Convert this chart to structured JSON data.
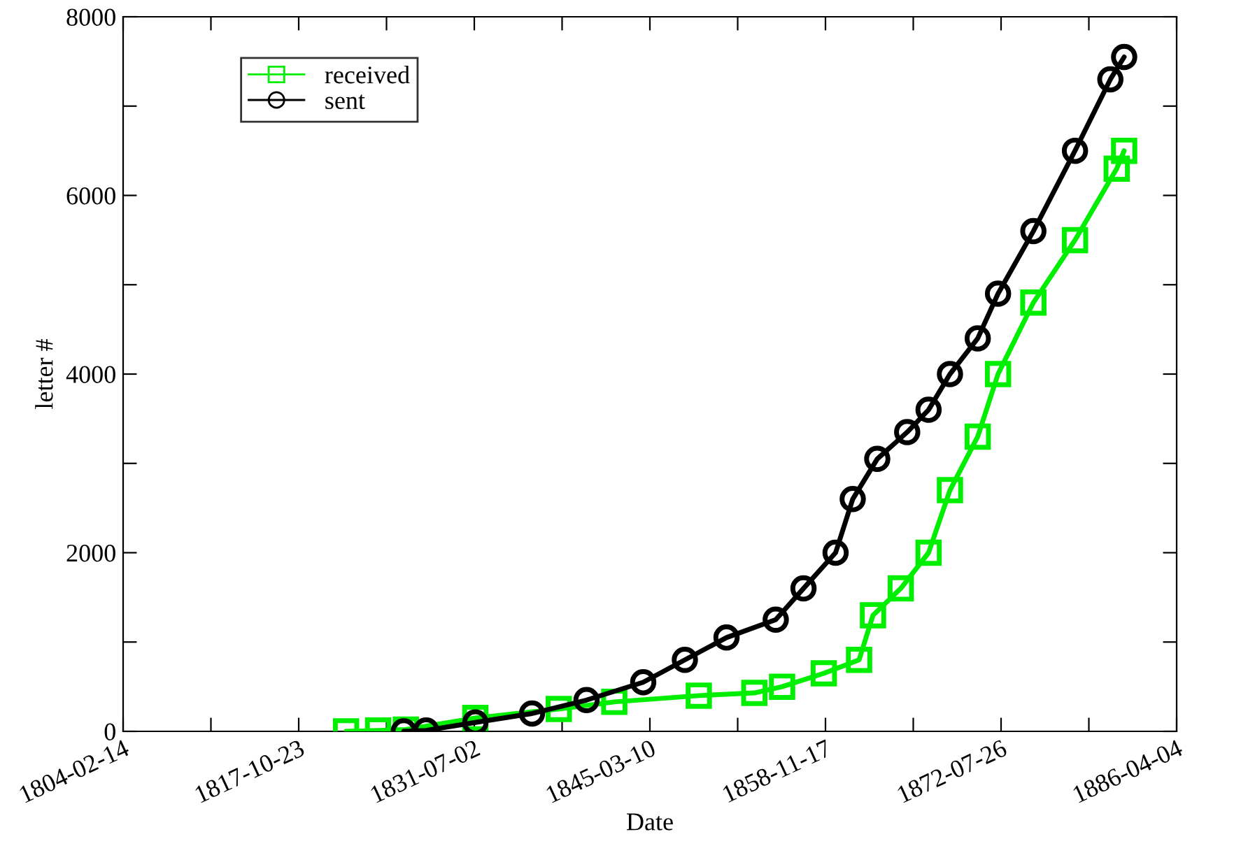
{
  "chart_data": {
    "type": "line",
    "xlabel": "Date",
    "ylabel": "letter #",
    "xlim": [
      "1804-02-14",
      "1886-04-04"
    ],
    "xticks": [
      {
        "value": "1804-02-14",
        "label": "1804-02-14"
      },
      {
        "value": "1810-12-19",
        "label": null
      },
      {
        "value": "1817-10-23",
        "label": "1817-10-23"
      },
      {
        "value": "1824-08-27",
        "label": null
      },
      {
        "value": "1831-07-02",
        "label": "1831-07-02"
      },
      {
        "value": "1838-05-06",
        "label": null
      },
      {
        "value": "1845-03-10",
        "label": "1845-03-10"
      },
      {
        "value": "1852-01-13",
        "label": null
      },
      {
        "value": "1858-11-17",
        "label": "1858-11-17"
      },
      {
        "value": "1865-09-21",
        "label": null
      },
      {
        "value": "1872-07-26",
        "label": "1872-07-26"
      },
      {
        "value": "1879-05-31",
        "label": null
      },
      {
        "value": "1886-04-04",
        "label": "1886-04-04"
      }
    ],
    "ylim": [
      0,
      8000
    ],
    "yticks": [
      0,
      {
        "value": 1000,
        "label": null
      },
      2000,
      {
        "value": 3000,
        "label": null
      },
      4000,
      {
        "value": 5000,
        "label": null
      },
      6000,
      {
        "value": 7000,
        "label": null
      },
      8000
    ],
    "grid": false,
    "legend": "top left",
    "line_style": "solid",
    "series": [
      {
        "name": "received",
        "color": "#00ee00",
        "marker": "square",
        "x": [
          "1821-07",
          "1824-01",
          "1826-03",
          "1831-08",
          "1838-02",
          "1842-06",
          "1849-01",
          "1853-05",
          "1855-07",
          "1858-10",
          "1861-07",
          "1862-08",
          "1864-10",
          "1866-12",
          "1868-08",
          "1870-10",
          "1872-05",
          "1875-02",
          "1878-05",
          "1881-08",
          "1882-03"
        ],
        "values": [
          0,
          10,
          20,
          150,
          250,
          330,
          400,
          430,
          500,
          650,
          800,
          1300,
          1600,
          2000,
          2700,
          3300,
          4000,
          4800,
          5500,
          6300,
          6500
        ]
      },
      {
        "name": "sent",
        "color": "#000000",
        "marker": "circle",
        "x": [
          "1826-01",
          "1827-10",
          "1831-08",
          "1836-01",
          "1840-04",
          "1844-09",
          "1847-12",
          "1851-03",
          "1855-01",
          "1857-03",
          "1859-09",
          "1861-01",
          "1862-12",
          "1865-04",
          "1866-12",
          "1868-08",
          "1870-10",
          "1872-05",
          "1875-02",
          "1878-05",
          "1881-02",
          "1882-03"
        ],
        "values": [
          0,
          10,
          100,
          200,
          350,
          550,
          800,
          1050,
          1250,
          1600,
          2000,
          2600,
          3050,
          3350,
          3600,
          4000,
          4400,
          4900,
          5600,
          6500,
          7300,
          7550
        ]
      }
    ]
  }
}
